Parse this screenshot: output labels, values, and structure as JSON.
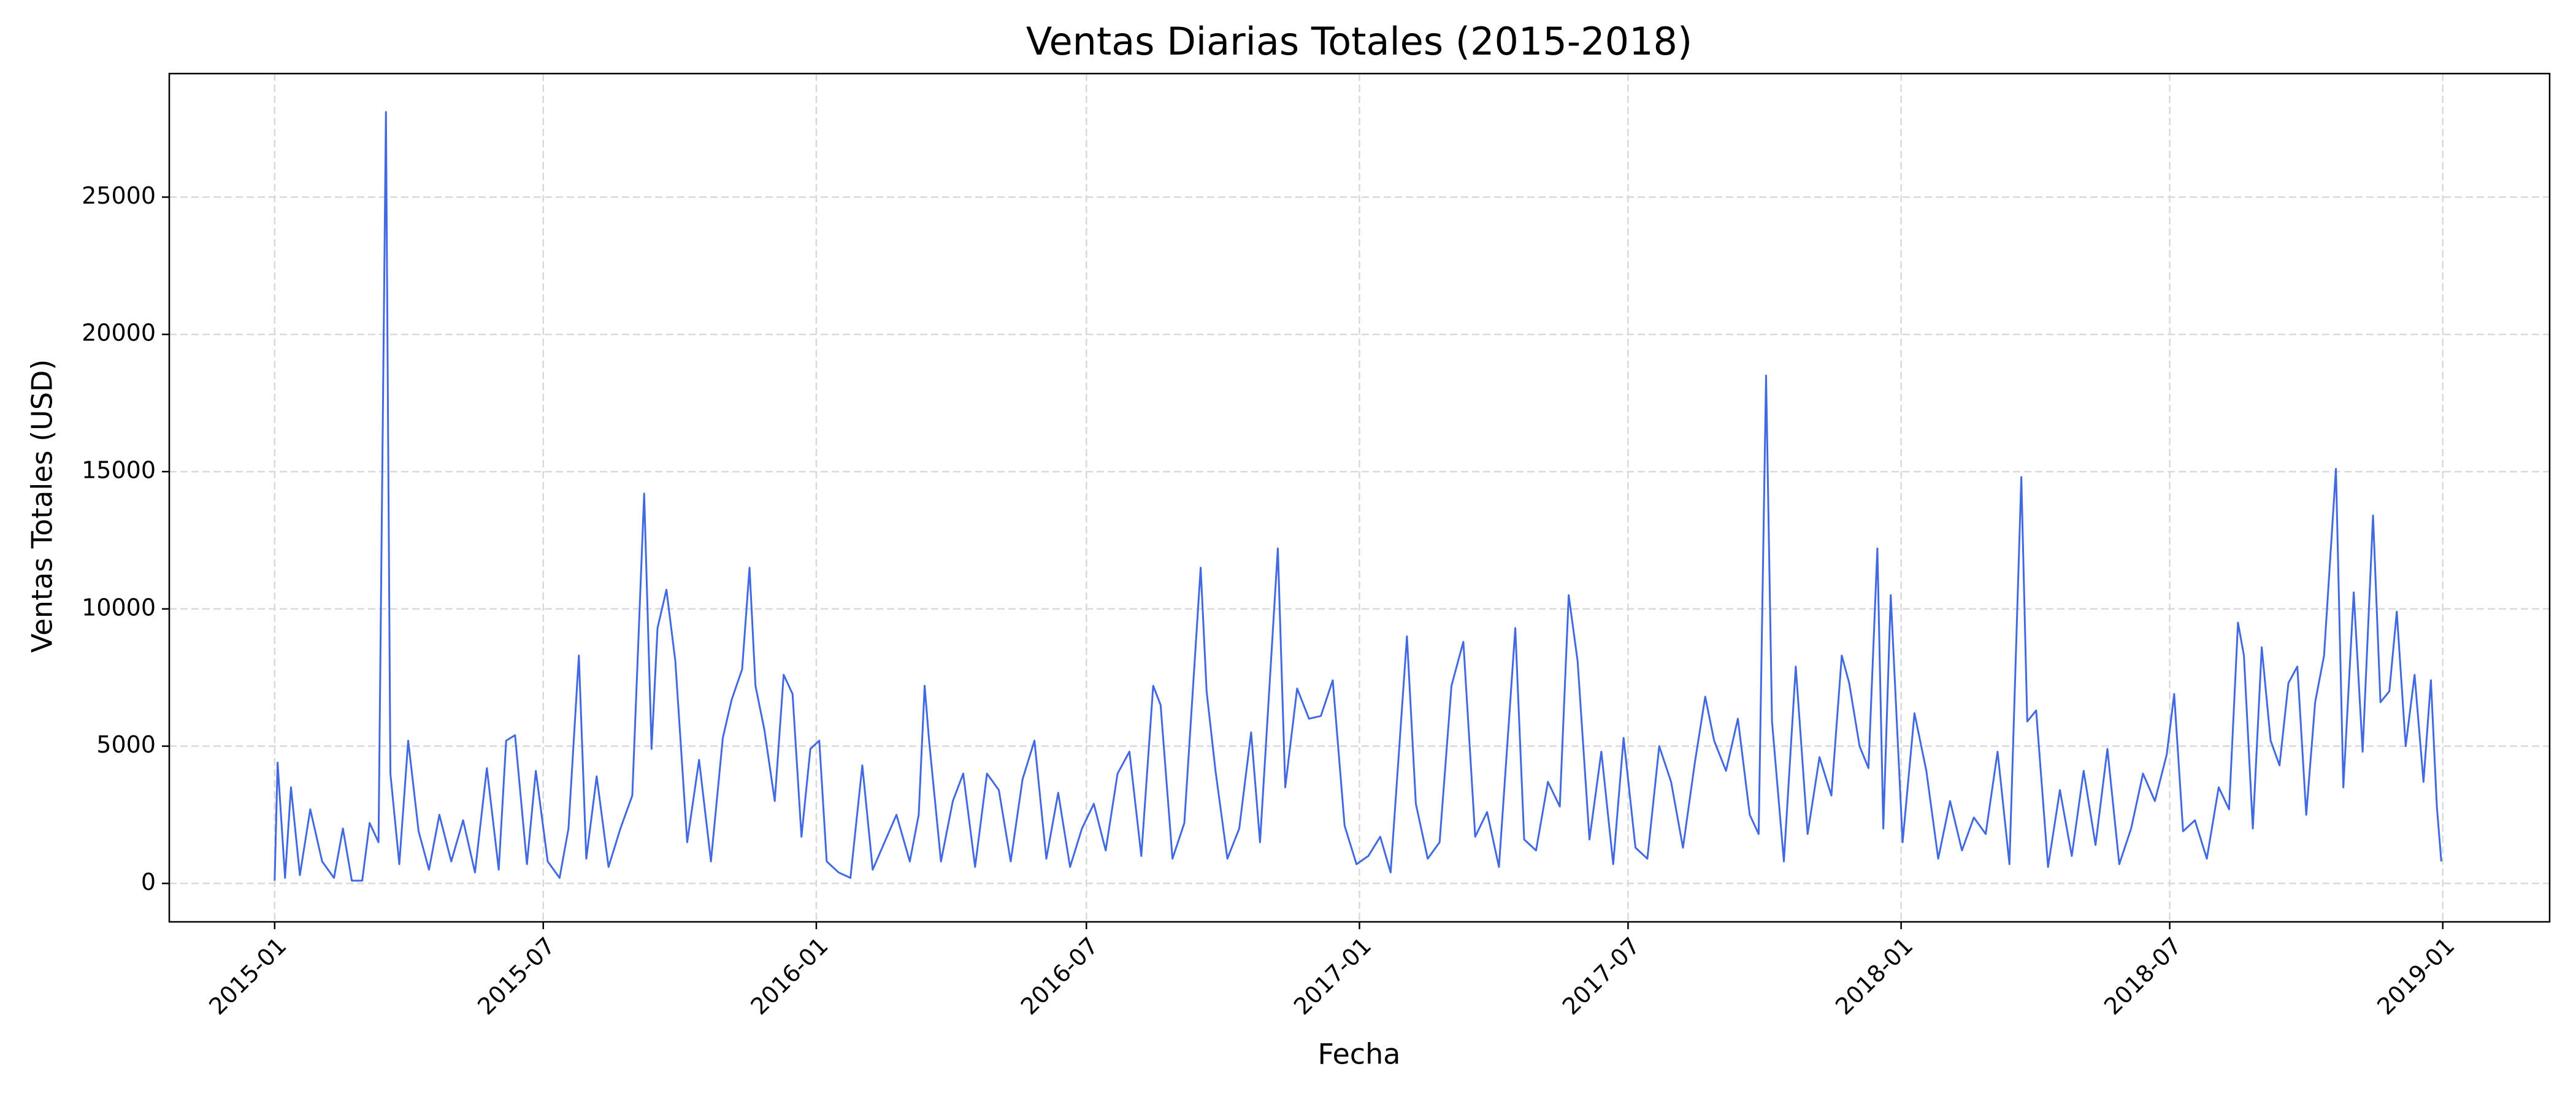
{
  "chart_data": {
    "type": "line",
    "title": "Ventas Diarias Totales (2015-2018)",
    "x_label": "Fecha",
    "y_label": "Ventas Totales (USD)",
    "x": [
      "2015-01-01",
      "2015-01-03",
      "2015-01-08",
      "2015-01-12",
      "2015-01-18",
      "2015-01-25",
      "2015-02-02",
      "2015-02-10",
      "2015-02-16",
      "2015-02-22",
      "2015-03-01",
      "2015-03-06",
      "2015-03-12",
      "2015-03-17",
      "2015-03-20",
      "2015-03-26",
      "2015-04-01",
      "2015-04-08",
      "2015-04-15",
      "2015-04-22",
      "2015-04-30",
      "2015-05-08",
      "2015-05-16",
      "2015-05-24",
      "2015-06-01",
      "2015-06-06",
      "2015-06-12",
      "2015-06-20",
      "2015-06-26",
      "2015-07-04",
      "2015-07-12",
      "2015-07-18",
      "2015-07-25",
      "2015-07-30",
      "2015-08-06",
      "2015-08-14",
      "2015-08-22",
      "2015-08-30",
      "2015-09-07",
      "2015-09-12",
      "2015-09-16",
      "2015-09-22",
      "2015-09-28",
      "2015-10-06",
      "2015-10-14",
      "2015-10-22",
      "2015-10-30",
      "2015-11-05",
      "2015-11-12",
      "2015-11-17",
      "2015-11-21",
      "2015-11-27",
      "2015-12-04",
      "2015-12-10",
      "2015-12-16",
      "2015-12-22",
      "2015-12-28",
      "2016-01-03",
      "2016-01-08",
      "2016-01-16",
      "2016-01-24",
      "2016-02-01",
      "2016-02-08",
      "2016-02-16",
      "2016-02-24",
      "2016-03-04",
      "2016-03-10",
      "2016-03-14",
      "2016-03-17",
      "2016-03-25",
      "2016-04-02",
      "2016-04-09",
      "2016-04-17",
      "2016-04-25",
      "2016-05-03",
      "2016-05-11",
      "2016-05-19",
      "2016-05-27",
      "2016-06-04",
      "2016-06-12",
      "2016-06-20",
      "2016-06-28",
      "2016-07-06",
      "2016-07-14",
      "2016-07-22",
      "2016-07-30",
      "2016-08-07",
      "2016-08-15",
      "2016-08-20",
      "2016-08-28",
      "2016-09-05",
      "2016-09-16",
      "2016-09-20",
      "2016-09-26",
      "2016-10-04",
      "2016-10-12",
      "2016-10-20",
      "2016-10-26",
      "2016-11-07",
      "2016-11-12",
      "2016-11-20",
      "2016-11-28",
      "2016-12-06",
      "2016-12-14",
      "2016-12-22",
      "2016-12-30",
      "2017-01-07",
      "2017-01-15",
      "2017-01-22",
      "2017-02-02",
      "2017-02-08",
      "2017-02-16",
      "2017-02-24",
      "2017-03-04",
      "2017-03-12",
      "2017-03-20",
      "2017-03-28",
      "2017-04-05",
      "2017-04-16",
      "2017-04-22",
      "2017-04-30",
      "2017-05-08",
      "2017-05-16",
      "2017-05-22",
      "2017-05-28",
      "2017-06-05",
      "2017-06-13",
      "2017-06-21",
      "2017-06-28",
      "2017-07-06",
      "2017-07-14",
      "2017-07-22",
      "2017-07-30",
      "2017-08-07",
      "2017-08-15",
      "2017-08-22",
      "2017-08-28",
      "2017-09-05",
      "2017-09-13",
      "2017-09-21",
      "2017-09-27",
      "2017-10-02",
      "2017-10-06",
      "2017-10-14",
      "2017-10-22",
      "2017-10-30",
      "2017-11-07",
      "2017-11-15",
      "2017-11-22",
      "2017-11-27",
      "2017-12-04",
      "2017-12-10",
      "2017-12-16",
      "2017-12-20",
      "2017-12-25",
      "2018-01-02",
      "2018-01-10",
      "2018-01-18",
      "2018-01-26",
      "2018-02-03",
      "2018-02-11",
      "2018-02-19",
      "2018-02-27",
      "2018-03-07",
      "2018-03-15",
      "2018-03-23",
      "2018-03-27",
      "2018-04-02",
      "2018-04-10",
      "2018-04-18",
      "2018-04-26",
      "2018-05-04",
      "2018-05-12",
      "2018-05-20",
      "2018-05-28",
      "2018-06-05",
      "2018-06-13",
      "2018-06-21",
      "2018-06-29",
      "2018-07-04",
      "2018-07-10",
      "2018-07-18",
      "2018-07-26",
      "2018-08-03",
      "2018-08-10",
      "2018-08-16",
      "2018-08-20",
      "2018-08-26",
      "2018-09-01",
      "2018-09-07",
      "2018-09-13",
      "2018-09-19",
      "2018-09-25",
      "2018-10-01",
      "2018-10-07",
      "2018-10-13",
      "2018-10-21",
      "2018-10-26",
      "2018-11-02",
      "2018-11-08",
      "2018-11-15",
      "2018-11-20",
      "2018-11-26",
      "2018-12-01",
      "2018-12-07",
      "2018-12-13",
      "2018-12-19",
      "2018-12-24",
      "2018-12-28",
      "2018-12-31"
    ],
    "series": [
      {
        "name": "Ventas",
        "color": "#4169e1",
        "values": [
          100,
          4400,
          200,
          3500,
          300,
          2700,
          800,
          200,
          2000,
          100,
          100,
          2200,
          1500,
          28100,
          4000,
          700,
          5200,
          1900,
          500,
          2500,
          800,
          2300,
          400,
          4200,
          500,
          5200,
          5400,
          700,
          4100,
          800,
          200,
          2000,
          8300,
          900,
          3900,
          600,
          2000,
          3200,
          14200,
          4900,
          9300,
          10700,
          8100,
          1500,
          4500,
          800,
          5300,
          6700,
          7800,
          11500,
          7200,
          5600,
          3000,
          7600,
          6900,
          1700,
          4900,
          5200,
          800,
          400,
          200,
          4300,
          500,
          1500,
          2500,
          800,
          2500,
          7200,
          5200,
          800,
          3000,
          4000,
          600,
          4000,
          3400,
          800,
          3800,
          5200,
          900,
          3300,
          600,
          2000,
          2900,
          1200,
          4000,
          4800,
          1000,
          7200,
          6500,
          900,
          2200,
          11500,
          7000,
          4100,
          900,
          2000,
          5500,
          1500,
          12200,
          3500,
          7100,
          6000,
          6100,
          7400,
          2100,
          700,
          1000,
          1700,
          400,
          9000,
          2900,
          900,
          1500,
          7200,
          8800,
          1700,
          2600,
          600,
          9300,
          1600,
          1200,
          3700,
          2800,
          10500,
          8100,
          1600,
          4800,
          700,
          5300,
          1300,
          900,
          5000,
          3700,
          1300,
          4400,
          6800,
          5200,
          4100,
          6000,
          2500,
          1800,
          18500,
          5900,
          800,
          7900,
          1800,
          4600,
          3200,
          8300,
          7300,
          5000,
          4200,
          12200,
          2000,
          10500,
          1500,
          6200,
          4100,
          900,
          3000,
          1200,
          2400,
          1800,
          4800,
          700,
          14800,
          5900,
          6300,
          600,
          3400,
          1000,
          4100,
          1400,
          4900,
          700,
          2000,
          4000,
          3000,
          4700,
          6900,
          1900,
          2300,
          900,
          3500,
          2700,
          9500,
          8300,
          2000,
          8600,
          5200,
          4300,
          7300,
          7900,
          2500,
          6600,
          8300,
          15100,
          3500,
          10600,
          4800,
          13400,
          6600,
          7000,
          9900,
          5000,
          7600,
          3700,
          7400,
          2800,
          800
        ]
      }
    ],
    "xlim": [
      "2014-10-22",
      "2019-03-14"
    ],
    "xticks": [
      "2015-01",
      "2015-07",
      "2016-01",
      "2016-07",
      "2017-01",
      "2017-07",
      "2018-01",
      "2018-07",
      "2019-01"
    ],
    "ylim": [
      -1400,
      29500
    ],
    "yticks": [
      0,
      5000,
      10000,
      15000,
      20000,
      25000
    ],
    "grid": true
  }
}
